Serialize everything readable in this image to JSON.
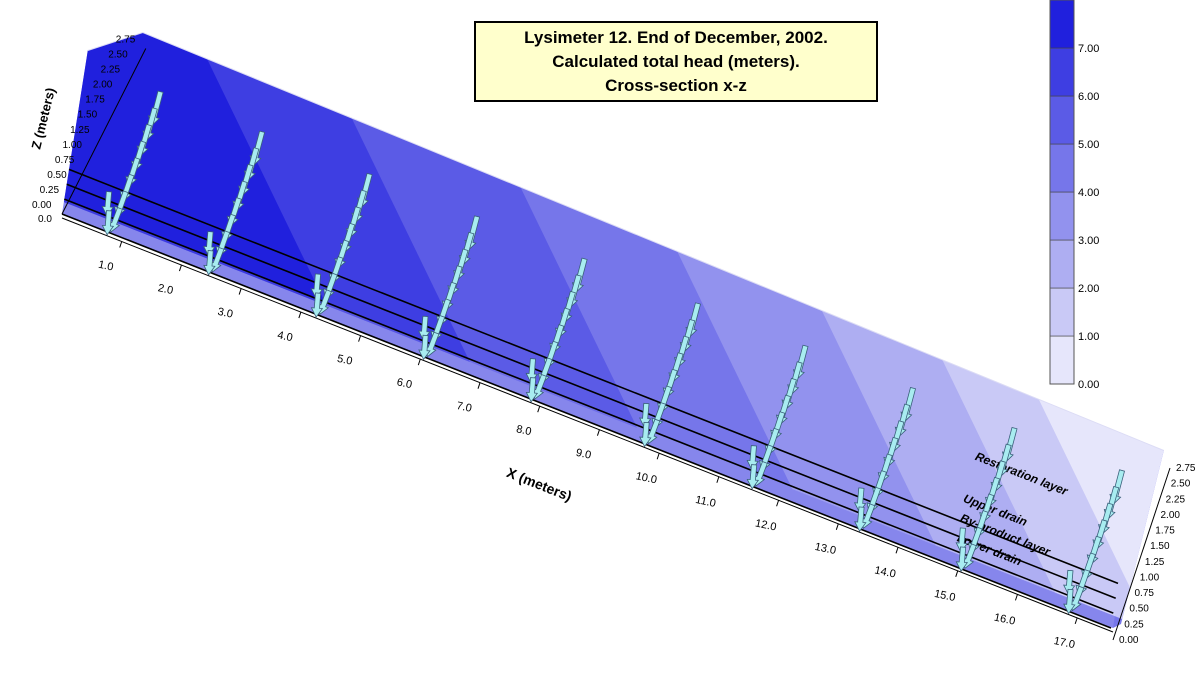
{
  "chart_data": {
    "type": "contour-vector-3d",
    "title_lines": [
      "Lysimeter 12. End of December, 2002.",
      "Calculated total head (meters).",
      "Cross-section x-z"
    ],
    "xlabel": "X (meters)",
    "zlabel": "Z (meters)",
    "x_ticks": [
      "1.0",
      "2.0",
      "3.0",
      "4.0",
      "5.0",
      "6.0",
      "7.0",
      "8.0",
      "9.0",
      "10.0",
      "11.0",
      "12.0",
      "13.0",
      "14.0",
      "15.0",
      "16.0",
      "17.0"
    ],
    "x_tick_values": [
      1,
      2,
      3,
      4,
      5,
      6,
      7,
      8,
      9,
      10,
      11,
      12,
      13,
      14,
      15,
      16,
      17
    ],
    "xlim": [
      0,
      17.6
    ],
    "z_ticks": [
      "0.0",
      "0.00",
      "0.25",
      "0.50",
      "0.75",
      "1.00",
      "1.25",
      "1.50",
      "1.75",
      "2.00",
      "2.25",
      "2.50",
      "2.75"
    ],
    "z_ticks_right": [
      "0.00",
      "0.25",
      "0.50",
      "0.75",
      "1.00",
      "1.25",
      "1.50",
      "1.75",
      "2.00",
      "2.25",
      "2.50",
      "2.75"
    ],
    "zlim": [
      0,
      2.75
    ],
    "colorbar": {
      "labels": [
        "0.00",
        "1.00",
        "2.00",
        "3.00",
        "4.00",
        "5.00",
        "6.00",
        "7.00"
      ],
      "levels": [
        0,
        1,
        2,
        3,
        4,
        5,
        6,
        7,
        8
      ],
      "colors": [
        "#ffffff",
        "#e6e6fb",
        "#c9c9f6",
        "#aeaef2",
        "#9292ee",
        "#7676ea",
        "#5b5be6",
        "#3e3ee2",
        "#2020dd"
      ]
    },
    "layers": [
      {
        "label": "Restoration layer",
        "z": 0.75
      },
      {
        "label": "Upper drain",
        "z": 0.5
      },
      {
        "label": "By-product layer",
        "z": 0.25
      },
      {
        "label": "Lower drain",
        "z": 0.0
      }
    ],
    "vector_columns_x": [
      0.9,
      2.6,
      4.4,
      6.2,
      8.0,
      9.9,
      11.7,
      13.5,
      15.2,
      17.0
    ],
    "vector_color": "#a8ecf0"
  }
}
